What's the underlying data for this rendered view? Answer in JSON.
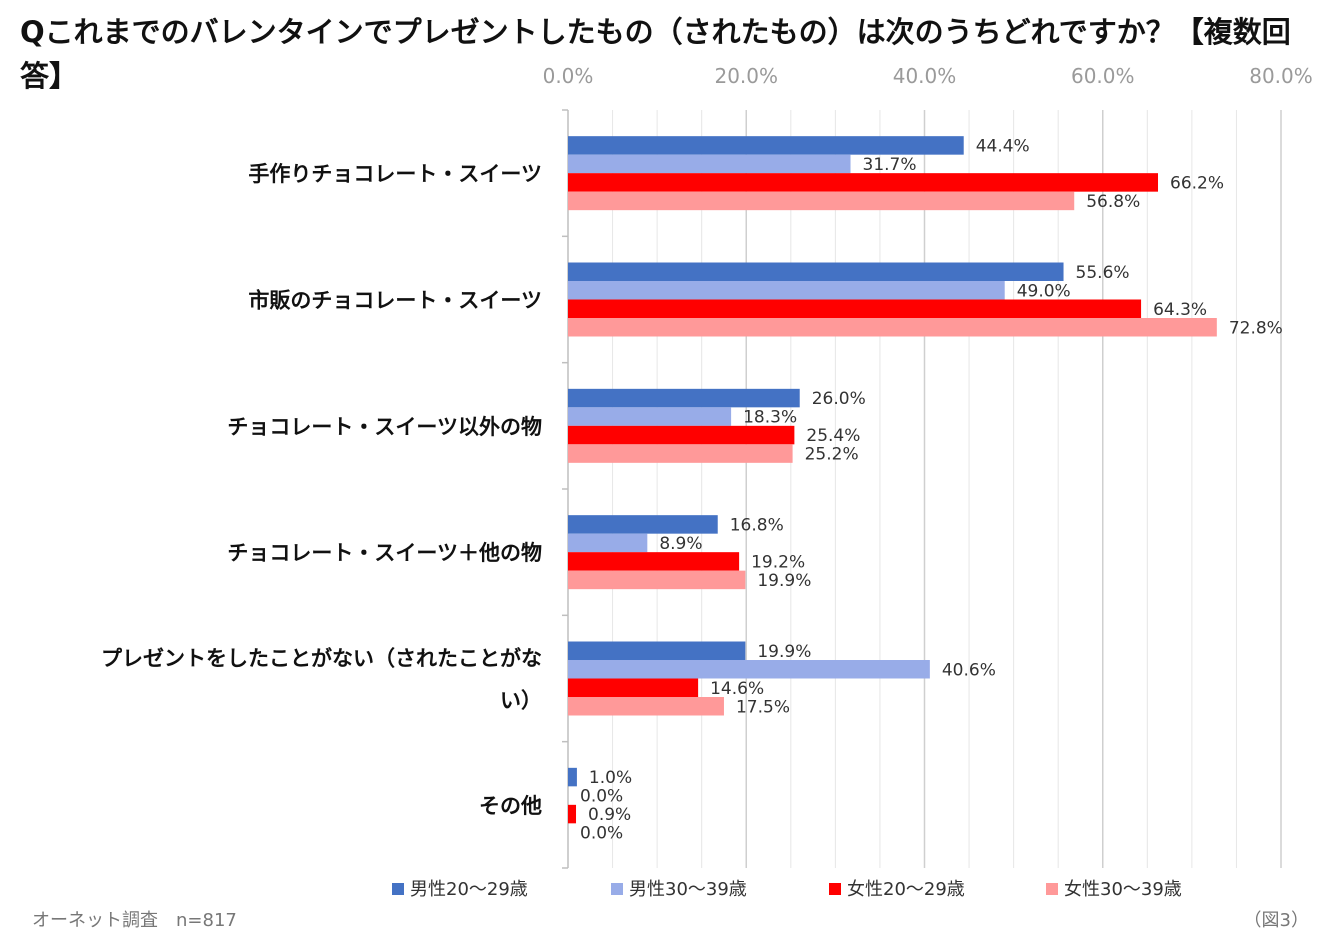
{
  "header": {
    "title": "Qこれまでのバレンタインでプレゼントしたもの（されたもの）は次のうちどれですか？【複数回答】"
  },
  "footer": {
    "source": "オーネット調査　n=817",
    "figure_no": "（図3）"
  },
  "chart_data": {
    "type": "bar",
    "orientation": "horizontal",
    "title": "Qこれまでのバレンタインでプレゼントしたもの（されたもの）は次のうちどれですか？【複数回答】",
    "xlim": [
      0,
      80
    ],
    "x_ticks": [
      0,
      20,
      40,
      60,
      80
    ],
    "x_tick_labels": [
      "0.0%",
      "20.0%",
      "40.0%",
      "60.0%",
      "80.0%"
    ],
    "categories": [
      [
        "手作りチョコレート・スイーツ"
      ],
      [
        "市販のチョコレート・スイーツ"
      ],
      [
        "チョコレート・スイーツ以外の物"
      ],
      [
        "チョコレート・スイーツ＋他の物"
      ],
      [
        "プレゼントをしたことがない（されたことがな",
        "い）"
      ],
      [
        "その他"
      ]
    ],
    "series": [
      {
        "name": "男性20〜29歳",
        "color": "#4472c4",
        "values": [
          44.4,
          55.6,
          26.0,
          16.8,
          19.9,
          1.0
        ],
        "labels": [
          "44.4%",
          "55.6%",
          "26.0%",
          "16.8%",
          "19.9%",
          "1.0%"
        ]
      },
      {
        "name": "男性30〜39歳",
        "color": "#98ace8",
        "values": [
          31.7,
          49.0,
          18.3,
          8.9,
          40.6,
          0.0
        ],
        "labels": [
          "31.7%",
          "49.0%",
          "18.3%",
          "8.9%",
          "40.6%",
          "0.0%"
        ]
      },
      {
        "name": "女性20〜29歳",
        "color": "#ff0000",
        "values": [
          66.2,
          64.3,
          25.4,
          19.2,
          14.6,
          0.9
        ],
        "labels": [
          "66.2%",
          "64.3%",
          "25.4%",
          "19.2%",
          "14.6%",
          "0.9%"
        ]
      },
      {
        "name": "女性30〜39歳",
        "color": "#ff9999",
        "values": [
          56.8,
          72.8,
          25.2,
          19.9,
          17.5,
          0.0
        ],
        "labels": [
          "56.8%",
          "72.8%",
          "25.2%",
          "19.9%",
          "17.5%",
          "0.0%"
        ]
      }
    ],
    "grid": true,
    "legend_position": "bottom"
  }
}
